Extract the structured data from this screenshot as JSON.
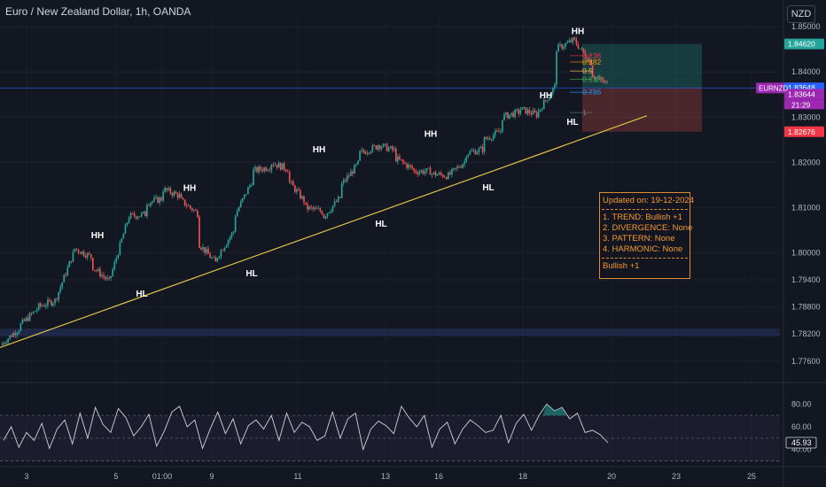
{
  "header": {
    "title": "Euro / New Zealand Dollar, 1h, OANDA",
    "currency": "NZD"
  },
  "colors": {
    "background": "#131722",
    "up": "#26a69a",
    "down": "#ef5350",
    "trendline": "#e0c04a",
    "rsi": "#d1d4dc",
    "summary_text": "#f59a2e",
    "target_zone": "#26a69a",
    "stop_zone": "#ef5350",
    "support_band": "#2a3a6e"
  },
  "chart_data": [
    {
      "type": "candlestick",
      "title": "Euro / New Zealand Dollar, 1h, OANDA",
      "y_ticks": [
        "1.85000",
        "1.84000",
        "1.83000",
        "1.82000",
        "1.81000",
        "1.80000",
        "1.79400",
        "1.78800",
        "1.78200",
        "1.77600"
      ],
      "ylim": [
        1.774,
        1.852
      ],
      "x_ticks": [
        "3",
        "5",
        "01:00",
        "9",
        "11",
        "13",
        "16",
        "18",
        "20",
        "23",
        "25"
      ],
      "price_path": [
        [
          1.7795,
          1.78
        ],
        [
          1.7835,
          1.784
        ],
        [
          1.7878,
          1.788
        ],
        [
          1.7895,
          1.79
        ],
        [
          1.8002,
          1.801
        ],
        [
          1.799,
          1.797
        ],
        [
          1.7935,
          1.794
        ],
        [
          1.807,
          1.808
        ],
        [
          1.8085,
          1.811
        ],
        [
          1.812,
          1.814
        ],
        [
          1.8125,
          1.8115
        ],
        [
          1.8085,
          1.802
        ],
        [
          1.7975,
          1.799
        ],
        [
          1.805,
          1.808
        ],
        [
          1.816,
          1.818
        ],
        [
          1.819,
          1.82
        ],
        [
          1.8185,
          1.816
        ],
        [
          1.811,
          1.81
        ],
        [
          1.809,
          1.808
        ],
        [
          1.8125,
          1.815
        ],
        [
          1.82,
          1.822
        ],
        [
          1.8235,
          1.824
        ],
        [
          1.8225,
          1.821
        ],
        [
          1.8185,
          1.818
        ],
        [
          1.818,
          1.8175
        ],
        [
          1.817,
          1.817
        ],
        [
          1.8205,
          1.822
        ],
        [
          1.823,
          1.825
        ],
        [
          1.827,
          1.83
        ],
        [
          1.8312,
          1.8318
        ],
        [
          1.8305,
          1.831
        ],
        [
          1.837,
          1.845
        ],
        [
          1.847,
          1.8472
        ],
        [
          1.842,
          1.8395
        ],
        [
          1.837,
          1.8364
        ]
      ],
      "swing_labels": [
        {
          "label": "HH",
          "price": 1.802
        },
        {
          "label": "HL",
          "price": 1.793
        },
        {
          "label": "HH",
          "price": 1.8125
        },
        {
          "label": "HL",
          "price": 1.7975
        },
        {
          "label": "HH",
          "price": 1.821
        },
        {
          "label": "HL",
          "price": 1.8085
        },
        {
          "label": "HH",
          "price": 1.8245
        },
        {
          "label": "HL",
          "price": 1.8165
        },
        {
          "label": "HH",
          "price": 1.833
        },
        {
          "label": "HL",
          "price": 1.831
        },
        {
          "label": "HH",
          "price": 1.8472
        }
      ],
      "trendline": {
        "from_price": 1.779,
        "to_price": 1.8303
      },
      "fibonacci": [
        {
          "level": "0.236",
          "price": 1.8436
        },
        {
          "level": "0.382",
          "price": 1.8422
        },
        {
          "level": "0.5",
          "price": 1.8402
        },
        {
          "level": "0.618",
          "price": 1.8384
        },
        {
          "level": "0.786",
          "price": 1.8355
        },
        {
          "level": "1",
          "price": 1.831
        }
      ],
      "position": {
        "target": 1.8462,
        "entry": 1.83648,
        "stop": 1.82676
      },
      "support_band": [
        1.7815,
        1.7832
      ],
      "price_labels": [
        {
          "text": "1.84620",
          "price": 1.8462,
          "color": "#26a69a"
        },
        {
          "text": "1.83648",
          "price": 1.83648,
          "color": "#2962ff"
        },
        {
          "text": "1.83644",
          "price": 1.83644,
          "color": "#9c27b0"
        },
        {
          "text": "1.82676",
          "price": 1.82676,
          "color": "#f23645"
        }
      ],
      "symbol_label": "EURNZD",
      "countdown": "21:29"
    },
    {
      "type": "line",
      "title": "RSI",
      "y_ticks": [
        "80.00",
        "60.00",
        "40.00"
      ],
      "ylim": [
        32,
        88
      ],
      "levels": [
        70,
        50,
        30
      ],
      "last_value": "45.93",
      "values": [
        48,
        60,
        42,
        55,
        48,
        63,
        41,
        58,
        66,
        45,
        72,
        50,
        77,
        62,
        55,
        76,
        68,
        52,
        60,
        71,
        43,
        56,
        73,
        78,
        60,
        66,
        41,
        58,
        73,
        54,
        67,
        45,
        61,
        66,
        58,
        70,
        48,
        72,
        55,
        64,
        60,
        48,
        52,
        73,
        50,
        67,
        72,
        40,
        58,
        65,
        61,
        54,
        78,
        68,
        60,
        70,
        42,
        58,
        64,
        45,
        58,
        66,
        61,
        55,
        57,
        70,
        46,
        63,
        71,
        57,
        70,
        80,
        74,
        77,
        67,
        72,
        55,
        57,
        53,
        46
      ]
    }
  ],
  "summary": {
    "updated": "Updated on: 19-12-2024",
    "trend": "1. TREND: Bullish +1",
    "divergence": "2. DIVERGENCE: None",
    "pattern": "3. PATTERN: None",
    "harmonic": "4. HARMONIC: None",
    "verdict": "Bullish +1"
  }
}
